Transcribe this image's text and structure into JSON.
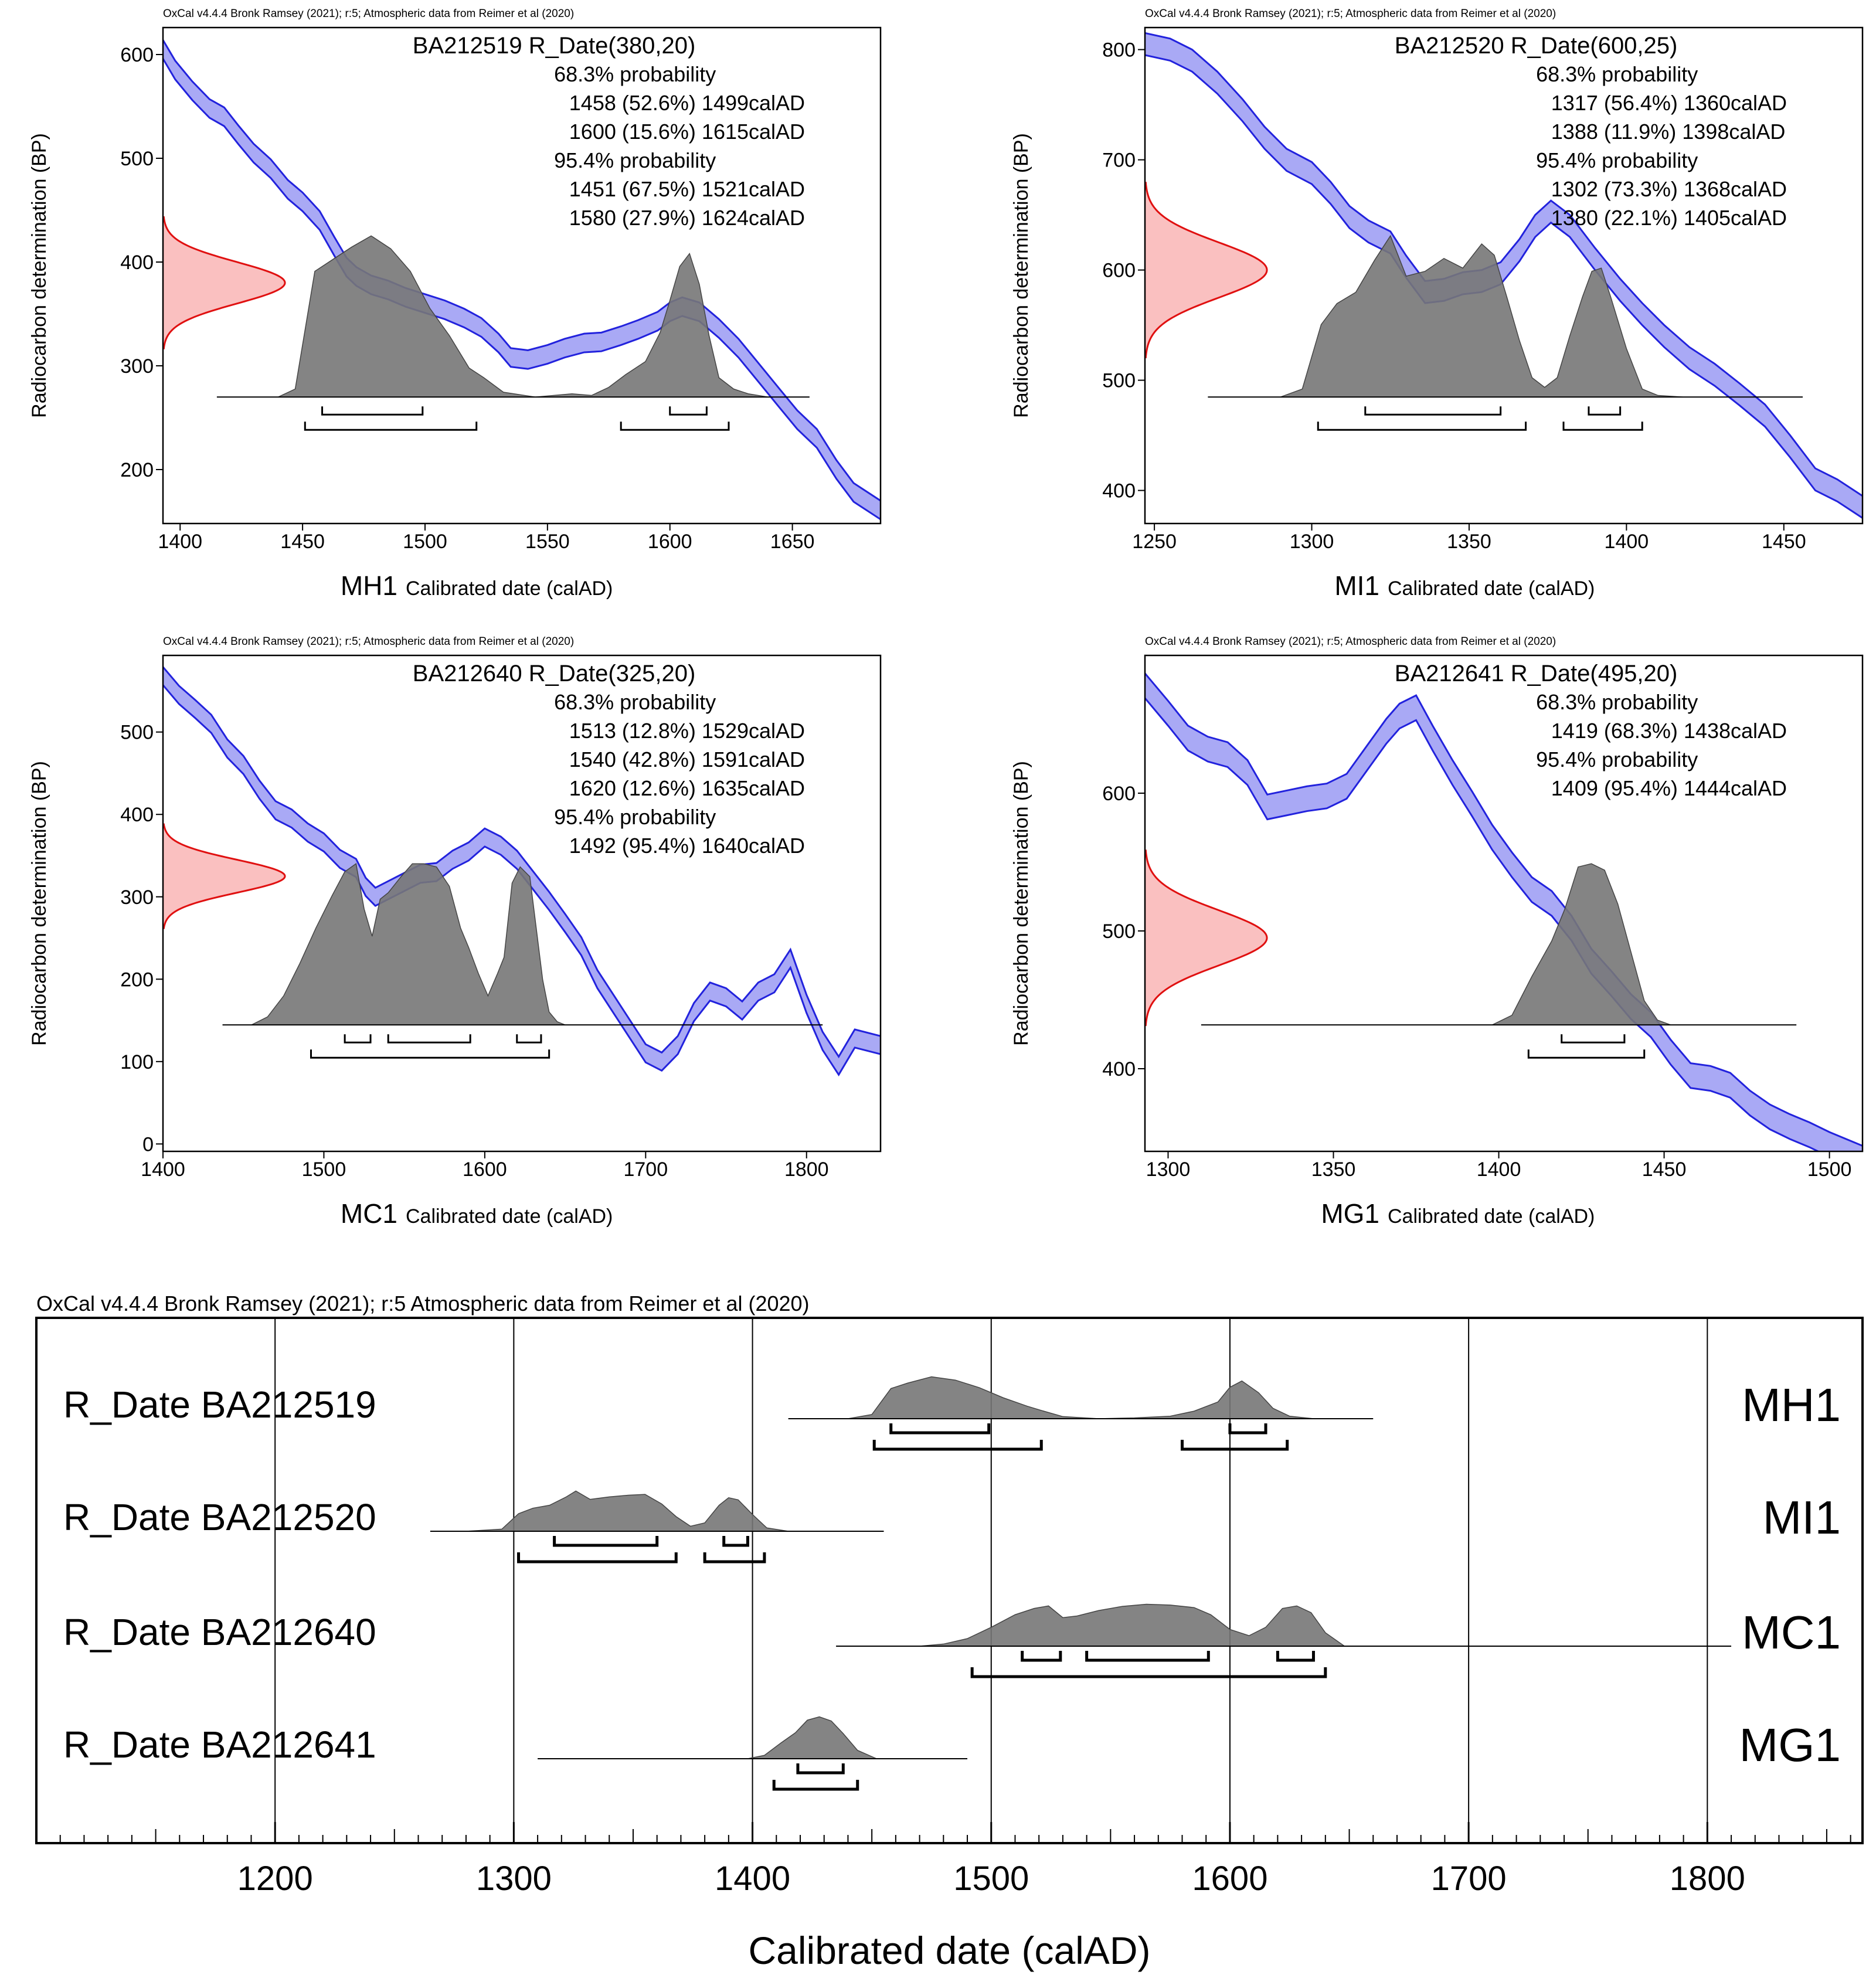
{
  "colors": {
    "curve_fill": "#a9a9f5",
    "curve_line": "#2222dd",
    "radio_fill": "#f9b5b5",
    "radio_line": "#e01010",
    "dist_fill": "#777777",
    "dist_line": "#444444",
    "axis": "#000000"
  },
  "chart_data": [
    {
      "type": "area",
      "credit": "OxCal v4.4.4 Bronk Ramsey (2021); r:5; Atmospheric data from Reimer et al (2020)",
      "title": "BA212519 R_Date(380,20)",
      "site": "MH1",
      "xlabel": "Calibrated date (calAD)",
      "ylabel": "Radiocarbon determination (BP)",
      "xlim": [
        1393,
        1686
      ],
      "ylim": [
        148,
        626
      ],
      "xticks": [
        1400,
        1450,
        1500,
        1550,
        1600,
        1650
      ],
      "yticks": [
        200,
        300,
        400,
        500,
        600
      ],
      "probability_lines": [
        "68.3% probability",
        "1458 (52.6%) 1499calAD",
        "1600 (15.6%) 1615calAD",
        "95.4% probability",
        "1451 (67.5%) 1521calAD",
        "1580 (27.9%) 1624calAD"
      ],
      "radiocarbon": {
        "mean": 380,
        "sd": 20
      },
      "curve": {
        "x": [
          1393,
          1398,
          1405,
          1412,
          1418,
          1424,
          1430,
          1437,
          1444,
          1450,
          1457,
          1463,
          1468,
          1472,
          1478,
          1485,
          1492,
          1500,
          1508,
          1516,
          1523,
          1530,
          1535,
          1542,
          1550,
          1557,
          1565,
          1572,
          1580,
          1587,
          1595,
          1600,
          1605,
          1612,
          1620,
          1628,
          1636,
          1645,
          1652,
          1660,
          1668,
          1675,
          1686
        ],
        "y": [
          605,
          585,
          565,
          548,
          540,
          522,
          505,
          490,
          470,
          458,
          440,
          415,
          395,
          386,
          378,
          373,
          366,
          360,
          354,
          346,
          337,
          322,
          308,
          306,
          311,
          317,
          322,
          323,
          329,
          335,
          343,
          352,
          357,
          352,
          336,
          317,
          294,
          268,
          248,
          230,
          200,
          178,
          161
        ],
        "halfwidth": 9
      },
      "distribution": {
        "x": [
          1440,
          1447,
          1455,
          1462,
          1470,
          1478,
          1486,
          1494,
          1502,
          1510,
          1518,
          1524,
          1532,
          1545,
          1560,
          1568,
          1575,
          1582,
          1590,
          1596,
          1600,
          1604,
          1608,
          1612,
          1616,
          1620,
          1626,
          1632,
          1640
        ],
        "y": [
          0.0,
          0.05,
          0.78,
          0.85,
          0.93,
          1.0,
          0.92,
          0.78,
          0.55,
          0.38,
          0.18,
          0.12,
          0.03,
          0.0,
          0.02,
          0.01,
          0.06,
          0.14,
          0.22,
          0.4,
          0.6,
          0.81,
          0.89,
          0.7,
          0.38,
          0.12,
          0.05,
          0.02,
          0.0
        ],
        "baseline_range": [
          1415,
          1657
        ]
      },
      "ranges_68": [
        [
          1458,
          1499
        ],
        [
          1600,
          1615
        ]
      ],
      "ranges_95": [
        [
          1451,
          1521
        ],
        [
          1580,
          1624
        ]
      ]
    },
    {
      "type": "area",
      "credit": "OxCal v4.4.4 Bronk Ramsey (2021); r:5; Atmospheric data from Reimer et al (2020)",
      "title": "BA212520 R_Date(600,25)",
      "site": "MI1",
      "xlabel": "Calibrated date (calAD)",
      "ylabel": "Radiocarbon determination (BP)",
      "xlim": [
        1247,
        1475
      ],
      "ylim": [
        370,
        820
      ],
      "xticks": [
        1250,
        1300,
        1350,
        1400,
        1450
      ],
      "yticks": [
        400,
        500,
        600,
        700,
        800
      ],
      "probability_lines": [
        "68.3% probability",
        "1317 (56.4%) 1360calAD",
        "1388 (11.9%) 1398calAD",
        "95.4% probability",
        "1302 (73.3%) 1368calAD",
        "1380 (22.1%) 1405calAD"
      ],
      "radiocarbon": {
        "mean": 600,
        "sd": 25
      },
      "curve": {
        "x": [
          1247,
          1255,
          1262,
          1270,
          1278,
          1285,
          1292,
          1300,
          1306,
          1312,
          1318,
          1325,
          1330,
          1336,
          1342,
          1348,
          1354,
          1360,
          1366,
          1371,
          1376,
          1382,
          1390,
          1398,
          1405,
          1412,
          1420,
          1428,
          1436,
          1444,
          1452,
          1460,
          1467,
          1475
        ],
        "y": [
          805,
          800,
          790,
          770,
          745,
          720,
          700,
          688,
          670,
          648,
          635,
          625,
          603,
          580,
          582,
          588,
          590,
          597,
          618,
          640,
          653,
          640,
          610,
          582,
          560,
          540,
          520,
          505,
          487,
          468,
          440,
          410,
          400,
          385
        ],
        "halfwidth": 10
      },
      "distribution": {
        "x": [
          1290,
          1297,
          1303,
          1308,
          1314,
          1320,
          1325,
          1330,
          1336,
          1342,
          1348,
          1354,
          1358,
          1362,
          1366,
          1370,
          1374,
          1378,
          1382,
          1386,
          1389,
          1392,
          1395,
          1400,
          1405,
          1410,
          1418
        ],
        "y": [
          0.0,
          0.05,
          0.45,
          0.58,
          0.65,
          0.85,
          1.0,
          0.75,
          0.78,
          0.86,
          0.8,
          0.95,
          0.88,
          0.62,
          0.35,
          0.12,
          0.06,
          0.12,
          0.38,
          0.62,
          0.78,
          0.8,
          0.62,
          0.3,
          0.05,
          0.01,
          0.0
        ],
        "baseline_range": [
          1267,
          1456
        ]
      },
      "ranges_68": [
        [
          1317,
          1360
        ],
        [
          1388,
          1398
        ]
      ],
      "ranges_95": [
        [
          1302,
          1368
        ],
        [
          1380,
          1405
        ]
      ]
    },
    {
      "type": "area",
      "credit": "OxCal v4.4.4 Bronk Ramsey (2021); r:5; Atmospheric data from Reimer et al (2020)",
      "title": "BA212640 R_Date(325,20)",
      "site": "MC1",
      "xlabel": "Calibrated date (calAD)",
      "ylabel": "Radiocarbon determination (BP)",
      "xlim": [
        1400,
        1846
      ],
      "ylim": [
        -9,
        593
      ],
      "xticks": [
        1400,
        1500,
        1600,
        1700,
        1800
      ],
      "yticks": [
        0,
        100,
        200,
        300,
        400,
        500
      ],
      "probability_lines": [
        "68.3% probability",
        "1513 (12.8%) 1529calAD",
        "1540 (42.8%) 1591calAD",
        "1620 (12.6%) 1635calAD",
        "95.4% probability",
        "1492 (95.4%) 1640calAD"
      ],
      "radiocarbon": {
        "mean": 325,
        "sd": 20
      },
      "curve": {
        "x": [
          1400,
          1410,
          1420,
          1430,
          1440,
          1450,
          1460,
          1470,
          1480,
          1490,
          1500,
          1510,
          1520,
          1526,
          1532,
          1540,
          1550,
          1560,
          1570,
          1580,
          1590,
          1600,
          1610,
          1620,
          1630,
          1640,
          1650,
          1660,
          1670,
          1680,
          1690,
          1700,
          1710,
          1720,
          1730,
          1740,
          1750,
          1760,
          1770,
          1780,
          1790,
          1800,
          1810,
          1820,
          1830,
          1846
        ],
        "y": [
          568,
          545,
          528,
          510,
          480,
          460,
          430,
          405,
          395,
          378,
          366,
          346,
          335,
          312,
          300,
          308,
          318,
          328,
          330,
          345,
          355,
          372,
          362,
          345,
          320,
          295,
          268,
          240,
          200,
          170,
          140,
          110,
          100,
          120,
          160,
          185,
          178,
          162,
          185,
          195,
          225,
          170,
          125,
          95,
          128,
          120
        ],
        "halfwidth": 11
      },
      "distribution": {
        "x": [
          1455,
          1465,
          1475,
          1485,
          1495,
          1505,
          1513,
          1520,
          1525,
          1530,
          1535,
          1540,
          1548,
          1555,
          1562,
          1570,
          1578,
          1585,
          1590,
          1596,
          1602,
          1608,
          1612,
          1617,
          1622,
          1628,
          1632,
          1636,
          1640,
          1645,
          1650
        ],
        "y": [
          0.0,
          0.05,
          0.18,
          0.38,
          0.6,
          0.8,
          0.95,
          1.0,
          0.72,
          0.55,
          0.78,
          0.82,
          0.92,
          1.0,
          1.0,
          0.98,
          0.86,
          0.6,
          0.48,
          0.32,
          0.18,
          0.32,
          0.42,
          0.88,
          0.98,
          0.92,
          0.6,
          0.28,
          0.08,
          0.02,
          0.0
        ],
        "baseline_range": [
          1437,
          1810
        ]
      },
      "ranges_68": [
        [
          1513,
          1529
        ],
        [
          1540,
          1591
        ],
        [
          1620,
          1635
        ]
      ],
      "ranges_95": [
        [
          1492,
          1640
        ]
      ]
    },
    {
      "type": "area",
      "credit": "OxCal v4.4.4 Bronk Ramsey (2021); r:5; Atmospheric data from Reimer et al (2020)",
      "title": "BA212641 R_Date(495,20)",
      "site": "MG1",
      "xlabel": "Calibrated date (calAD)",
      "ylabel": "Radiocarbon determination (BP)",
      "xlim": [
        1293,
        1510
      ],
      "ylim": [
        340,
        700
      ],
      "xticks": [
        1300,
        1350,
        1400,
        1450,
        1500
      ],
      "yticks": [
        400,
        500,
        600
      ],
      "probability_lines": [
        "68.3% probability",
        "1419 (68.3%) 1438calAD",
        "95.4% probability",
        "1409 (95.4%) 1444calAD"
      ],
      "radiocarbon": {
        "mean": 495,
        "sd": 20
      },
      "curve": {
        "x": [
          1293,
          1300,
          1306,
          1312,
          1318,
          1324,
          1330,
          1336,
          1342,
          1348,
          1354,
          1360,
          1366,
          1370,
          1375,
          1380,
          1386,
          1392,
          1398,
          1404,
          1410,
          1416,
          1422,
          1428,
          1434,
          1440,
          1446,
          1452,
          1458,
          1464,
          1470,
          1476,
          1482,
          1488,
          1494,
          1500,
          1510
        ],
        "y": [
          678,
          658,
          640,
          632,
          628,
          615,
          590,
          593,
          596,
          598,
          605,
          625,
          645,
          656,
          662,
          640,
          615,
          592,
          568,
          548,
          530,
          520,
          502,
          478,
          462,
          445,
          432,
          412,
          395,
          393,
          388,
          375,
          365,
          358,
          352,
          345,
          335
        ],
        "halfwidth": 9
      },
      "distribution": {
        "x": [
          1398,
          1404,
          1410,
          1416,
          1420,
          1424,
          1428,
          1432,
          1436,
          1440,
          1444,
          1448,
          1452
        ],
        "y": [
          0.0,
          0.06,
          0.3,
          0.52,
          0.72,
          0.98,
          1.0,
          0.96,
          0.75,
          0.45,
          0.15,
          0.03,
          0.0
        ],
        "baseline_range": [
          1310,
          1490
        ]
      },
      "ranges_68": [
        [
          1419,
          1438
        ]
      ],
      "ranges_95": [
        [
          1409,
          1444
        ]
      ]
    },
    {
      "type": "area",
      "credit": "OxCal v4.4.4 Bronk Ramsey (2021); r:5 Atmospheric data from Reimer et al (2020)",
      "xlabel": "Calibrated date (calAD)",
      "xlim": [
        1100,
        1865
      ],
      "xticks": [
        1200,
        1300,
        1400,
        1500,
        1600,
        1700,
        1800
      ],
      "rows": [
        {
          "label": "R_Date BA212519",
          "site": "MH1",
          "baseline_range": [
            1415,
            1660
          ],
          "distribution": {
            "x": [
              1440,
              1450,
              1458,
              1465,
              1475,
              1485,
              1495,
              1505,
              1515,
              1522,
              1530,
              1545,
              1560,
              1575,
              1585,
              1595,
              1600,
              1605,
              1612,
              1618,
              1625,
              1635
            ],
            "y": [
              0.0,
              0.1,
              0.72,
              0.85,
              1.0,
              0.92,
              0.74,
              0.5,
              0.3,
              0.18,
              0.05,
              0.0,
              0.02,
              0.06,
              0.18,
              0.4,
              0.75,
              0.9,
              0.62,
              0.25,
              0.06,
              0.0
            ]
          },
          "ranges_68": [
            [
              1458,
              1499
            ],
            [
              1600,
              1615
            ]
          ],
          "ranges_95": [
            [
              1451,
              1521
            ],
            [
              1580,
              1624
            ]
          ]
        },
        {
          "label": "R_Date BA212520",
          "site": "MI1",
          "baseline_range": [
            1265,
            1455
          ],
          "distribution": {
            "x": [
              1280,
              1295,
              1302,
              1308,
              1315,
              1322,
              1326,
              1332,
              1340,
              1348,
              1355,
              1362,
              1368,
              1374,
              1380,
              1386,
              1390,
              1394,
              1400,
              1406,
              1415
            ],
            "y": [
              0.0,
              0.05,
              0.42,
              0.55,
              0.62,
              0.82,
              0.96,
              0.76,
              0.82,
              0.86,
              0.88,
              0.65,
              0.35,
              0.12,
              0.2,
              0.62,
              0.8,
              0.75,
              0.4,
              0.08,
              0.0
            ]
          },
          "ranges_68": [
            [
              1317,
              1360
            ],
            [
              1388,
              1398
            ]
          ],
          "ranges_95": [
            [
              1302,
              1368
            ],
            [
              1380,
              1405
            ]
          ]
        },
        {
          "label": "R_Date BA212640",
          "site": "MC1",
          "baseline_range": [
            1435,
            1810
          ],
          "distribution": {
            "x": [
              1470,
              1480,
              1490,
              1500,
              1510,
              1518,
              1524,
              1530,
              1536,
              1545,
              1555,
              1565,
              1575,
              1585,
              1592,
              1600,
              1608,
              1615,
              1622,
              1628,
              1634,
              1640,
              1648
            ],
            "y": [
              0.0,
              0.05,
              0.18,
              0.45,
              0.75,
              0.9,
              0.96,
              0.68,
              0.72,
              0.85,
              0.95,
              1.0,
              0.98,
              0.92,
              0.75,
              0.4,
              0.25,
              0.45,
              0.9,
              0.96,
              0.8,
              0.32,
              0.0
            ]
          },
          "ranges_68": [
            [
              1513,
              1529
            ],
            [
              1540,
              1591
            ],
            [
              1620,
              1635
            ]
          ],
          "ranges_95": [
            [
              1492,
              1640
            ]
          ]
        },
        {
          "label": "R_Date BA212641",
          "site": "MG1",
          "baseline_range": [
            1310,
            1490
          ],
          "distribution": {
            "x": [
              1398,
              1405,
              1412,
              1418,
              1423,
              1428,
              1433,
              1438,
              1444,
              1452
            ],
            "y": [
              0.0,
              0.08,
              0.38,
              0.62,
              0.92,
              1.0,
              0.9,
              0.6,
              0.2,
              0.0
            ]
          },
          "ranges_68": [
            [
              1419,
              1438
            ]
          ],
          "ranges_95": [
            [
              1409,
              1444
            ]
          ]
        }
      ]
    }
  ]
}
